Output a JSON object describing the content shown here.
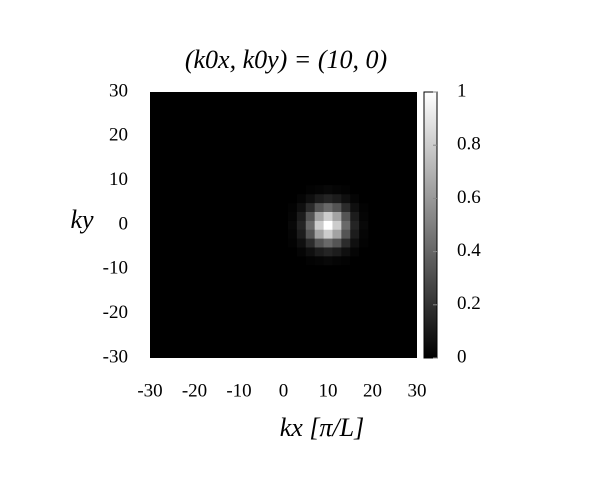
{
  "chart_data": {
    "type": "heatmap",
    "title": "(k0x, k0y) = (10, 0)",
    "xlabel": "kx [π/L]",
    "ylabel": "ky",
    "xlim": [
      -30,
      30
    ],
    "ylim": [
      -30,
      30
    ],
    "xticks": [
      -30,
      -20,
      -10,
      0,
      10,
      20,
      30
    ],
    "yticks": [
      -30,
      -20,
      -10,
      0,
      10,
      20,
      30
    ],
    "zlim": [
      0,
      1
    ],
    "zticks": [
      0,
      0.2,
      0.4,
      0.6,
      0.8,
      1
    ],
    "x": [
      2,
      4,
      6,
      8,
      10,
      12,
      14,
      16,
      18
    ],
    "y": [
      -8,
      -6,
      -4,
      -2,
      0,
      2,
      4,
      6,
      8
    ],
    "z": [
      [
        0,
        0,
        0.01,
        0.02,
        0.03,
        0.02,
        0.01,
        0,
        0
      ],
      [
        0,
        0.02,
        0.06,
        0.11,
        0.14,
        0.11,
        0.06,
        0.02,
        0
      ],
      [
        0.01,
        0.06,
        0.17,
        0.33,
        0.41,
        0.33,
        0.17,
        0.06,
        0.01
      ],
      [
        0.02,
        0.11,
        0.33,
        0.64,
        0.8,
        0.64,
        0.33,
        0.11,
        0.02
      ],
      [
        0.03,
        0.14,
        0.41,
        0.8,
        1,
        0.8,
        0.41,
        0.14,
        0.03
      ],
      [
        0.02,
        0.11,
        0.33,
        0.64,
        0.8,
        0.64,
        0.33,
        0.11,
        0.02
      ],
      [
        0.01,
        0.06,
        0.17,
        0.33,
        0.41,
        0.33,
        0.17,
        0.06,
        0.01
      ],
      [
        0,
        0.02,
        0.06,
        0.11,
        0.14,
        0.11,
        0.06,
        0.02,
        0
      ],
      [
        0,
        0,
        0.01,
        0.02,
        0.03,
        0.02,
        0.01,
        0,
        0
      ]
    ]
  }
}
